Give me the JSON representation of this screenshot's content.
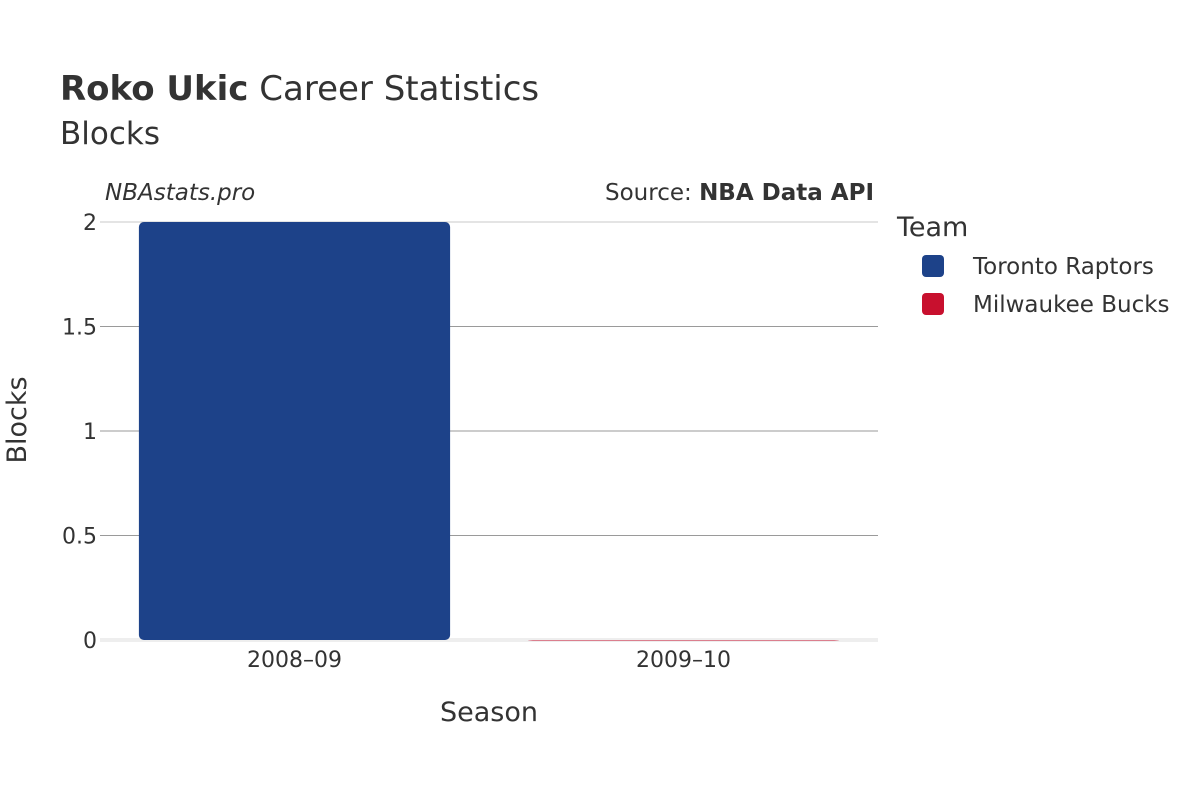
{
  "header": {
    "player_name": "Roko Ukic",
    "title_suffix": " Career Statistics",
    "subtitle": "Blocks"
  },
  "watermark": "NBAstats.pro",
  "source": {
    "label": "Source: ",
    "value": "NBA Data API"
  },
  "legend": {
    "title": "Team",
    "items": [
      {
        "label": "Toronto Raptors",
        "color": "#1d4289"
      },
      {
        "label": "Milwaukee Bucks",
        "color": "#c8102e"
      }
    ]
  },
  "chart_data": {
    "type": "bar",
    "title": "Roko Ukic Career Statistics",
    "subtitle": "Blocks",
    "xlabel": "Season",
    "ylabel": "Blocks",
    "categories": [
      "2008–09",
      "2009–10"
    ],
    "series": [
      {
        "name": "Toronto Raptors",
        "color": "#1d4289",
        "values": [
          2,
          null
        ]
      },
      {
        "name": "Milwaukee Bucks",
        "color": "#c8102e",
        "values": [
          null,
          0
        ]
      }
    ],
    "ylim": [
      0,
      2
    ],
    "yticks": [
      0,
      0.5,
      1,
      1.5,
      2
    ],
    "ytick_labels": [
      "0",
      "0.5",
      "1",
      "1.5",
      "2"
    ],
    "grid": true,
    "legend_position": "right"
  }
}
